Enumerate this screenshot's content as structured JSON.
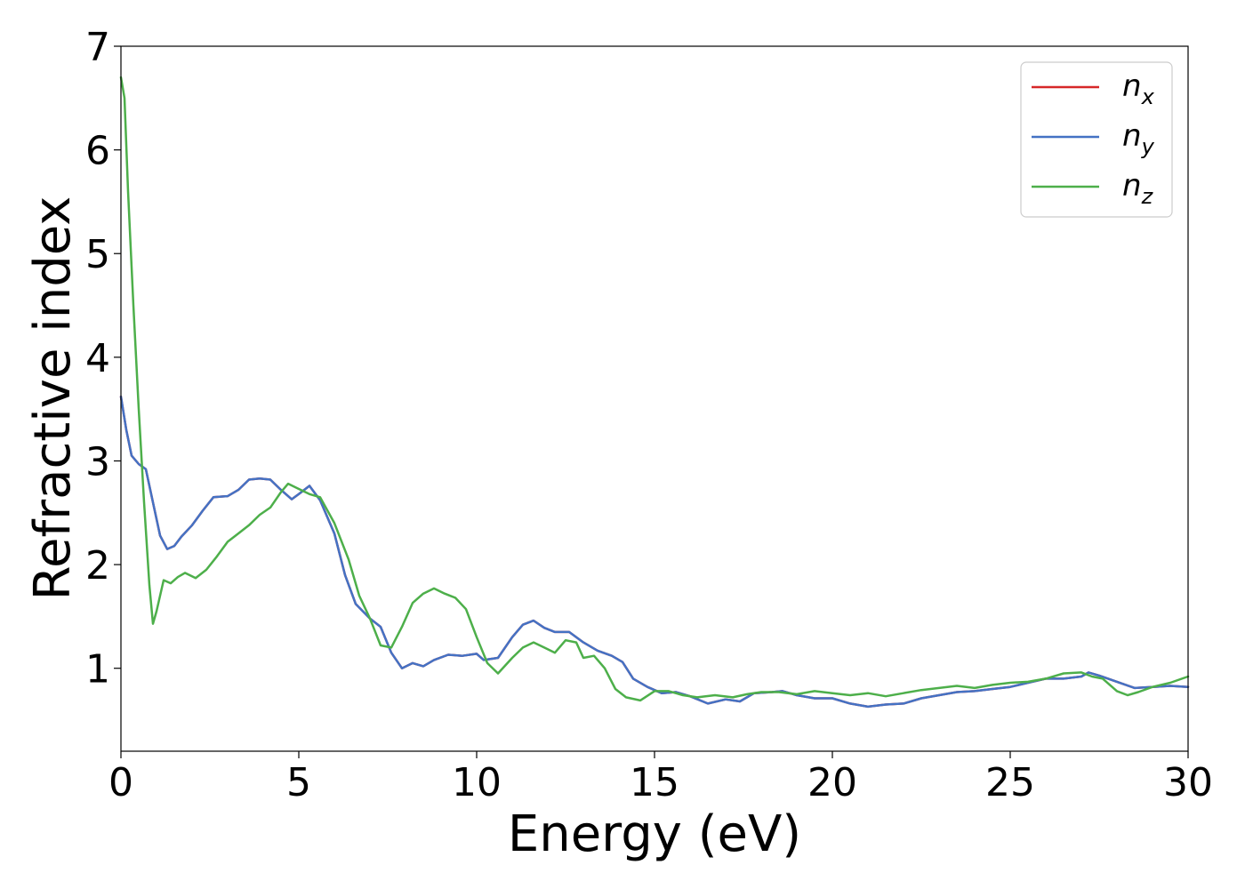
{
  "chart_data": {
    "type": "line",
    "title": "",
    "xlabel": "Energy (eV)",
    "ylabel": "Refractive index",
    "xlim": [
      0,
      30
    ],
    "ylim": [
      0.2,
      7
    ],
    "xticks": [
      0,
      5,
      10,
      15,
      20,
      25,
      30
    ],
    "xtick_labels": [
      "0",
      "5",
      "10",
      "15",
      "20",
      "25",
      "30"
    ],
    "yticks": [
      1,
      2,
      3,
      4,
      5,
      6,
      7
    ],
    "ytick_labels": [
      "1",
      "2",
      "3",
      "4",
      "5",
      "6",
      "7"
    ],
    "grid": false,
    "legend_position": "top-right",
    "series": [
      {
        "name": "n_x",
        "legend_base": "n",
        "legend_sub": "x",
        "color": "#d62728",
        "points": [
          [
            0,
            3.62
          ],
          [
            0.15,
            3.3
          ],
          [
            0.3,
            3.05
          ],
          [
            0.5,
            2.97
          ],
          [
            0.7,
            2.92
          ],
          [
            0.9,
            2.6
          ],
          [
            1.1,
            2.28
          ],
          [
            1.3,
            2.15
          ],
          [
            1.5,
            2.18
          ],
          [
            1.7,
            2.27
          ],
          [
            2.0,
            2.38
          ],
          [
            2.3,
            2.52
          ],
          [
            2.6,
            2.65
          ],
          [
            3.0,
            2.66
          ],
          [
            3.3,
            2.72
          ],
          [
            3.6,
            2.82
          ],
          [
            3.9,
            2.83
          ],
          [
            4.2,
            2.82
          ],
          [
            4.5,
            2.72
          ],
          [
            4.8,
            2.63
          ],
          [
            5.0,
            2.68
          ],
          [
            5.3,
            2.76
          ],
          [
            5.6,
            2.62
          ],
          [
            6.0,
            2.3
          ],
          [
            6.3,
            1.9
          ],
          [
            6.6,
            1.62
          ],
          [
            7.0,
            1.48
          ],
          [
            7.3,
            1.4
          ],
          [
            7.6,
            1.15
          ],
          [
            7.9,
            1.0
          ],
          [
            8.2,
            1.05
          ],
          [
            8.5,
            1.02
          ],
          [
            8.8,
            1.08
          ],
          [
            9.2,
            1.13
          ],
          [
            9.6,
            1.12
          ],
          [
            10.0,
            1.14
          ],
          [
            10.2,
            1.08
          ],
          [
            10.6,
            1.1
          ],
          [
            11.0,
            1.3
          ],
          [
            11.3,
            1.42
          ],
          [
            11.6,
            1.46
          ],
          [
            11.9,
            1.39
          ],
          [
            12.2,
            1.35
          ],
          [
            12.6,
            1.35
          ],
          [
            13.0,
            1.25
          ],
          [
            13.4,
            1.17
          ],
          [
            13.8,
            1.12
          ],
          [
            14.1,
            1.06
          ],
          [
            14.4,
            0.9
          ],
          [
            14.8,
            0.82
          ],
          [
            15.2,
            0.76
          ],
          [
            15.6,
            0.77
          ],
          [
            16.0,
            0.73
          ],
          [
            16.5,
            0.66
          ],
          [
            17.0,
            0.7
          ],
          [
            17.4,
            0.68
          ],
          [
            17.8,
            0.76
          ],
          [
            18.3,
            0.77
          ],
          [
            18.6,
            0.78
          ],
          [
            19.0,
            0.74
          ],
          [
            19.5,
            0.71
          ],
          [
            20.0,
            0.71
          ],
          [
            20.5,
            0.66
          ],
          [
            21.0,
            0.63
          ],
          [
            21.5,
            0.65
          ],
          [
            22.0,
            0.66
          ],
          [
            22.5,
            0.71
          ],
          [
            23.0,
            0.74
          ],
          [
            23.5,
            0.77
          ],
          [
            24.0,
            0.78
          ],
          [
            24.5,
            0.8
          ],
          [
            25.0,
            0.82
          ],
          [
            25.5,
            0.86
          ],
          [
            26.0,
            0.9
          ],
          [
            26.5,
            0.9
          ],
          [
            27.0,
            0.92
          ],
          [
            27.2,
            0.96
          ],
          [
            27.5,
            0.93
          ],
          [
            28.0,
            0.87
          ],
          [
            28.5,
            0.81
          ],
          [
            29.0,
            0.82
          ],
          [
            29.5,
            0.83
          ],
          [
            30.0,
            0.82
          ]
        ]
      },
      {
        "name": "n_y",
        "legend_base": "n",
        "legend_sub": "y",
        "color": "#4472c4",
        "points": [
          [
            0,
            3.62
          ],
          [
            0.15,
            3.3
          ],
          [
            0.3,
            3.05
          ],
          [
            0.5,
            2.97
          ],
          [
            0.7,
            2.92
          ],
          [
            0.9,
            2.6
          ],
          [
            1.1,
            2.28
          ],
          [
            1.3,
            2.15
          ],
          [
            1.5,
            2.18
          ],
          [
            1.7,
            2.27
          ],
          [
            2.0,
            2.38
          ],
          [
            2.3,
            2.52
          ],
          [
            2.6,
            2.65
          ],
          [
            3.0,
            2.66
          ],
          [
            3.3,
            2.72
          ],
          [
            3.6,
            2.82
          ],
          [
            3.9,
            2.83
          ],
          [
            4.2,
            2.82
          ],
          [
            4.5,
            2.72
          ],
          [
            4.8,
            2.63
          ],
          [
            5.0,
            2.68
          ],
          [
            5.3,
            2.76
          ],
          [
            5.6,
            2.62
          ],
          [
            6.0,
            2.3
          ],
          [
            6.3,
            1.9
          ],
          [
            6.6,
            1.62
          ],
          [
            7.0,
            1.48
          ],
          [
            7.3,
            1.4
          ],
          [
            7.6,
            1.15
          ],
          [
            7.9,
            1.0
          ],
          [
            8.2,
            1.05
          ],
          [
            8.5,
            1.02
          ],
          [
            8.8,
            1.08
          ],
          [
            9.2,
            1.13
          ],
          [
            9.6,
            1.12
          ],
          [
            10.0,
            1.14
          ],
          [
            10.2,
            1.08
          ],
          [
            10.6,
            1.1
          ],
          [
            11.0,
            1.3
          ],
          [
            11.3,
            1.42
          ],
          [
            11.6,
            1.46
          ],
          [
            11.9,
            1.39
          ],
          [
            12.2,
            1.35
          ],
          [
            12.6,
            1.35
          ],
          [
            13.0,
            1.25
          ],
          [
            13.4,
            1.17
          ],
          [
            13.8,
            1.12
          ],
          [
            14.1,
            1.06
          ],
          [
            14.4,
            0.9
          ],
          [
            14.8,
            0.82
          ],
          [
            15.2,
            0.76
          ],
          [
            15.6,
            0.77
          ],
          [
            16.0,
            0.73
          ],
          [
            16.5,
            0.66
          ],
          [
            17.0,
            0.7
          ],
          [
            17.4,
            0.68
          ],
          [
            17.8,
            0.76
          ],
          [
            18.3,
            0.77
          ],
          [
            18.6,
            0.78
          ],
          [
            19.0,
            0.74
          ],
          [
            19.5,
            0.71
          ],
          [
            20.0,
            0.71
          ],
          [
            20.5,
            0.66
          ],
          [
            21.0,
            0.63
          ],
          [
            21.5,
            0.65
          ],
          [
            22.0,
            0.66
          ],
          [
            22.5,
            0.71
          ],
          [
            23.0,
            0.74
          ],
          [
            23.5,
            0.77
          ],
          [
            24.0,
            0.78
          ],
          [
            24.5,
            0.8
          ],
          [
            25.0,
            0.82
          ],
          [
            25.5,
            0.86
          ],
          [
            26.0,
            0.9
          ],
          [
            26.5,
            0.9
          ],
          [
            27.0,
            0.92
          ],
          [
            27.2,
            0.96
          ],
          [
            27.5,
            0.93
          ],
          [
            28.0,
            0.87
          ],
          [
            28.5,
            0.81
          ],
          [
            29.0,
            0.82
          ],
          [
            29.5,
            0.83
          ],
          [
            30.0,
            0.82
          ]
        ]
      },
      {
        "name": "n_z",
        "legend_base": "n",
        "legend_sub": "z",
        "color": "#4daf4a",
        "points": [
          [
            0,
            6.7
          ],
          [
            0.1,
            6.5
          ],
          [
            0.2,
            5.6
          ],
          [
            0.35,
            4.5
          ],
          [
            0.5,
            3.5
          ],
          [
            0.65,
            2.6
          ],
          [
            0.8,
            1.8
          ],
          [
            0.9,
            1.43
          ],
          [
            1.0,
            1.55
          ],
          [
            1.2,
            1.85
          ],
          [
            1.4,
            1.82
          ],
          [
            1.6,
            1.88
          ],
          [
            1.8,
            1.92
          ],
          [
            2.1,
            1.87
          ],
          [
            2.4,
            1.95
          ],
          [
            2.7,
            2.08
          ],
          [
            3.0,
            2.22
          ],
          [
            3.3,
            2.3
          ],
          [
            3.6,
            2.38
          ],
          [
            3.9,
            2.48
          ],
          [
            4.2,
            2.55
          ],
          [
            4.5,
            2.7
          ],
          [
            4.7,
            2.78
          ],
          [
            5.0,
            2.73
          ],
          [
            5.3,
            2.68
          ],
          [
            5.6,
            2.65
          ],
          [
            6.0,
            2.4
          ],
          [
            6.4,
            2.05
          ],
          [
            6.7,
            1.7
          ],
          [
            7.0,
            1.48
          ],
          [
            7.3,
            1.22
          ],
          [
            7.6,
            1.2
          ],
          [
            7.9,
            1.4
          ],
          [
            8.2,
            1.63
          ],
          [
            8.5,
            1.72
          ],
          [
            8.8,
            1.77
          ],
          [
            9.1,
            1.72
          ],
          [
            9.4,
            1.68
          ],
          [
            9.7,
            1.57
          ],
          [
            10.0,
            1.3
          ],
          [
            10.3,
            1.05
          ],
          [
            10.6,
            0.95
          ],
          [
            11.0,
            1.1
          ],
          [
            11.3,
            1.2
          ],
          [
            11.6,
            1.25
          ],
          [
            11.9,
            1.2
          ],
          [
            12.2,
            1.15
          ],
          [
            12.5,
            1.27
          ],
          [
            12.8,
            1.25
          ],
          [
            13.0,
            1.1
          ],
          [
            13.3,
            1.12
          ],
          [
            13.6,
            1.0
          ],
          [
            13.9,
            0.8
          ],
          [
            14.2,
            0.72
          ],
          [
            14.6,
            0.69
          ],
          [
            15.0,
            0.78
          ],
          [
            15.4,
            0.78
          ],
          [
            15.8,
            0.74
          ],
          [
            16.2,
            0.72
          ],
          [
            16.7,
            0.74
          ],
          [
            17.2,
            0.72
          ],
          [
            17.6,
            0.75
          ],
          [
            18.0,
            0.77
          ],
          [
            18.5,
            0.77
          ],
          [
            19.0,
            0.75
          ],
          [
            19.5,
            0.78
          ],
          [
            20.0,
            0.76
          ],
          [
            20.5,
            0.74
          ],
          [
            21.0,
            0.76
          ],
          [
            21.5,
            0.73
          ],
          [
            22.0,
            0.76
          ],
          [
            22.5,
            0.79
          ],
          [
            23.0,
            0.81
          ],
          [
            23.5,
            0.83
          ],
          [
            24.0,
            0.81
          ],
          [
            24.5,
            0.84
          ],
          [
            25.0,
            0.86
          ],
          [
            25.5,
            0.87
          ],
          [
            26.0,
            0.9
          ],
          [
            26.5,
            0.95
          ],
          [
            27.0,
            0.96
          ],
          [
            27.3,
            0.92
          ],
          [
            27.6,
            0.9
          ],
          [
            28.0,
            0.78
          ],
          [
            28.3,
            0.74
          ],
          [
            28.6,
            0.77
          ],
          [
            29.0,
            0.82
          ],
          [
            29.5,
            0.86
          ],
          [
            30.0,
            0.92
          ]
        ]
      }
    ]
  }
}
